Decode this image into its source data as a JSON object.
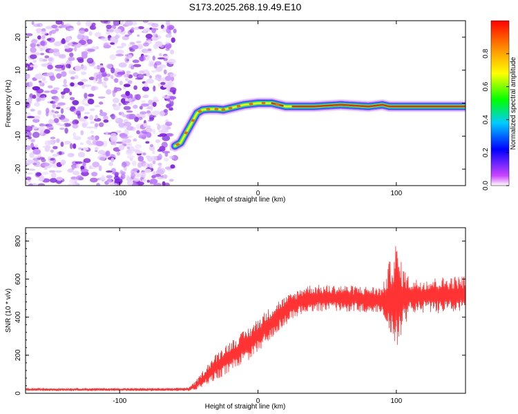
{
  "title": "S173.2025.268.19.49.E10",
  "chart_data": [
    {
      "type": "heatmap",
      "name": "spectrogram",
      "xlabel": "Height of straight line (km)",
      "ylabel": "Frequency (Hz)",
      "xlim": [
        -168,
        150
      ],
      "ylim": [
        -25,
        25
      ],
      "xticks": [
        -100,
        0,
        100
      ],
      "yticks": [
        -20,
        -10,
        0,
        10,
        20
      ],
      "noise_region_x": [
        -168,
        -60
      ],
      "ridge": {
        "x": [
          -60,
          -56,
          -52,
          -48,
          -44,
          -40,
          -35,
          -30,
          -25,
          -20,
          -10,
          0,
          10,
          20,
          40,
          60,
          80,
          90,
          95,
          100,
          150
        ],
        "freq": [
          -13,
          -12,
          -9,
          -6,
          -3,
          -2,
          -1.8,
          -1.8,
          -2,
          -1.5,
          -0.5,
          0,
          0,
          -1,
          -1,
          -0.5,
          -1,
          -0.5,
          -1,
          -1,
          -1
        ]
      },
      "colorbar": {
        "label": "Normalized spectral amplitude",
        "ticks": [
          0.0,
          0.2,
          0.4,
          0.6,
          0.8
        ],
        "colors": [
          "#ffffff",
          "#cc44ff",
          "#0000ff",
          "#00ccff",
          "#00ff00",
          "#ffff00",
          "#ff8800",
          "#ff0000"
        ]
      }
    },
    {
      "type": "line",
      "name": "snr",
      "xlabel": "Height of straight line (km)",
      "ylabel": "SNR (10 * v/v)",
      "xlim": [
        -168,
        150
      ],
      "ylim": [
        0,
        870
      ],
      "xticks": [
        -100,
        0,
        100
      ],
      "yticks": [
        0,
        200,
        400,
        600,
        800
      ],
      "color": "#ff3333",
      "envelope": {
        "x": [
          -168,
          -60,
          -50,
          -45,
          -35,
          -25,
          -15,
          -5,
          5,
          15,
          25,
          35,
          60,
          90,
          97,
          100,
          103,
          110,
          150
        ],
        "mean": [
          20,
          20,
          22,
          40,
          110,
          170,
          220,
          270,
          340,
          410,
          460,
          500,
          500,
          490,
          500,
          500,
          500,
          510,
          520
        ],
        "amp": [
          8,
          8,
          10,
          25,
          60,
          80,
          80,
          90,
          90,
          80,
          70,
          70,
          70,
          70,
          250,
          300,
          200,
          90,
          100
        ]
      }
    }
  ]
}
